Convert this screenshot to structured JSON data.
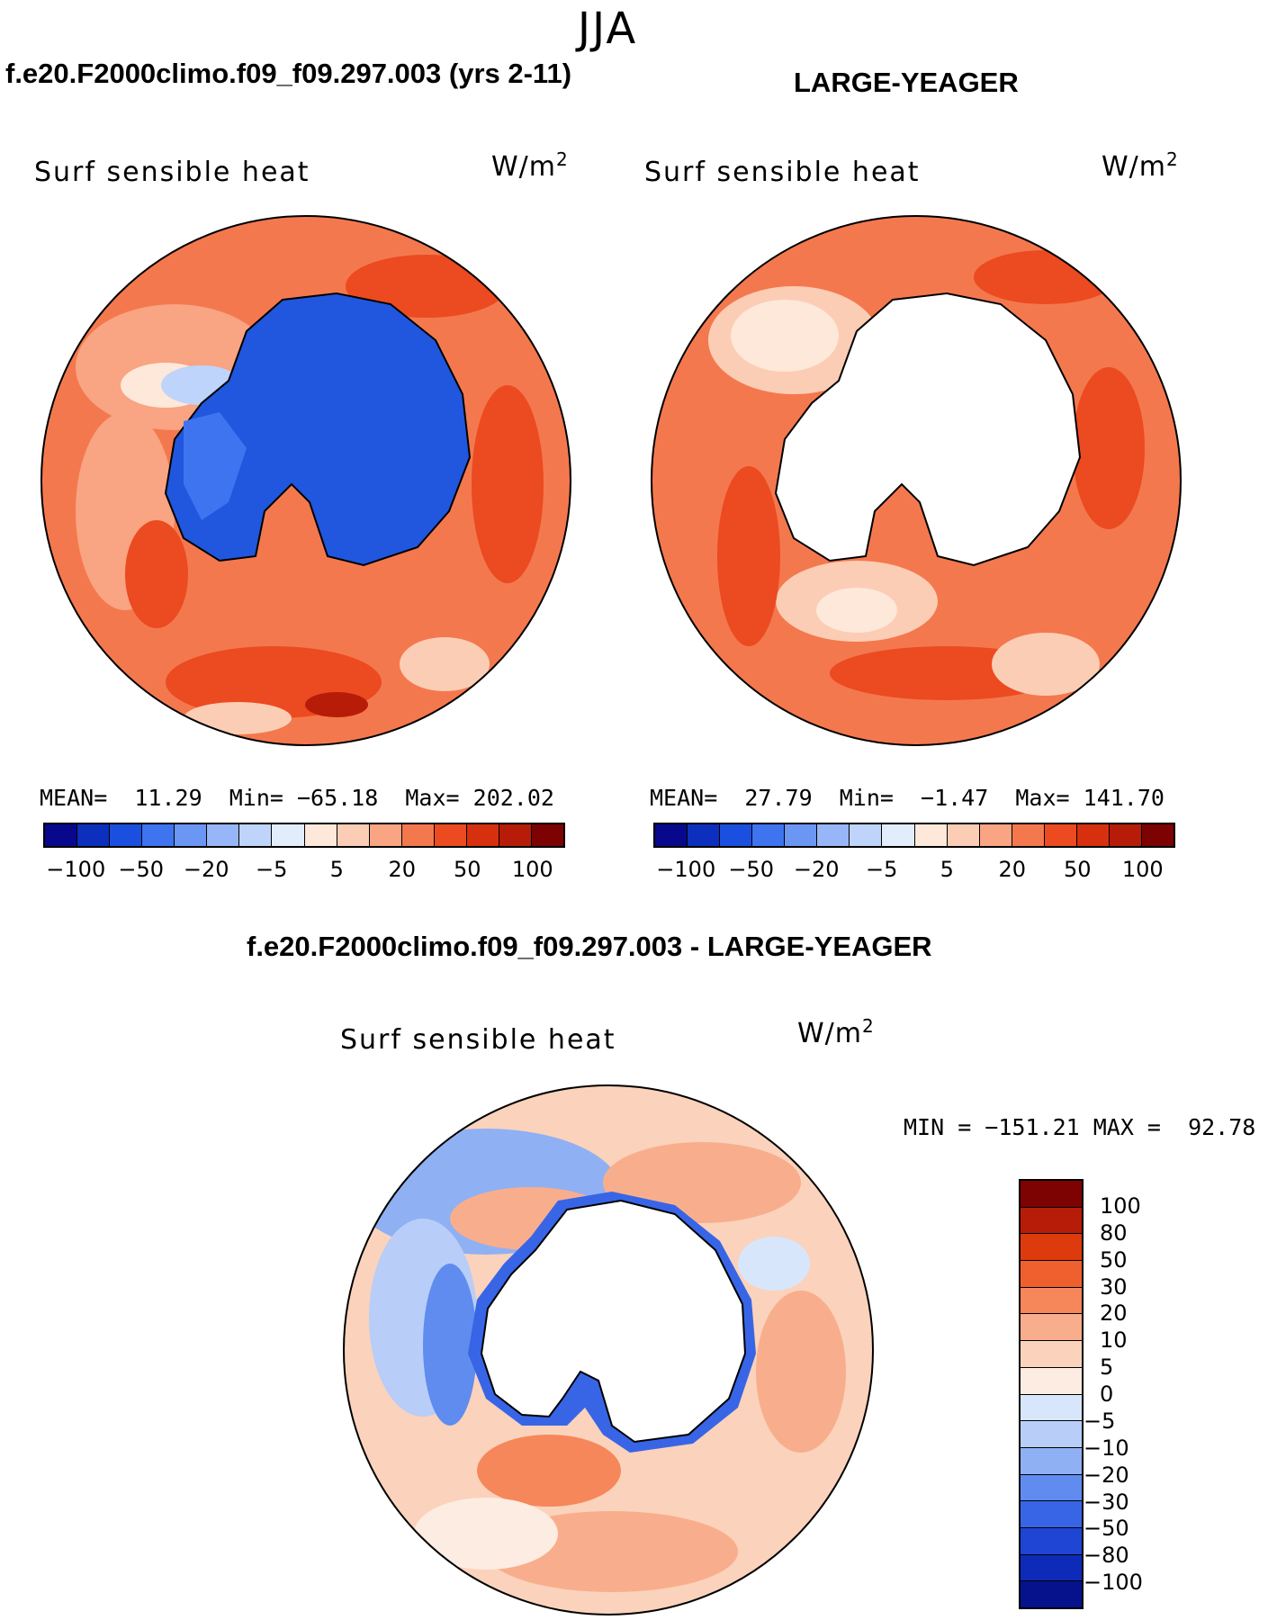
{
  "season": "JJA",
  "panel_left": {
    "case_title": "f.e20.F2000climo.f09_f09.297.003 (yrs 2-11)",
    "field_label": "Surf sensible heat",
    "units": "W/m",
    "units_exp": "2",
    "stats": "MEAN=  11.29  Min= −65.18  Max= 202.02",
    "colorbar_ticks": [
      "−100",
      "−50",
      "−20",
      "−5",
      "5",
      "20",
      "50",
      "100"
    ]
  },
  "panel_right": {
    "case_title": "LARGE-YEAGER",
    "field_label": "Surf sensible heat",
    "units": "W/m",
    "units_exp": "2",
    "stats": "MEAN=  27.79  Min=  −1.47  Max= 141.70",
    "colorbar_ticks": [
      "−100",
      "−50",
      "−20",
      "−5",
      "5",
      "20",
      "50",
      "100"
    ]
  },
  "panel_diff": {
    "diff_title": "f.e20.F2000climo.f09_f09.297.003 - LARGE-YEAGER",
    "field_label": "Surf sensible heat",
    "units": "W/m",
    "units_exp": "2",
    "minmax": "MIN = −151.21 MAX =  92.78",
    "colorbar_ticks": [
      "100",
      "80",
      "50",
      "30",
      "20",
      "10",
      "5",
      "0",
      "−5",
      "−10",
      "−20",
      "−30",
      "−50",
      "−80",
      "−100"
    ]
  },
  "colors": {
    "abs_scale": [
      "#08088c",
      "#0c2fbe",
      "#1a4fe0",
      "#3f74f0",
      "#6c96f4",
      "#97b6f7",
      "#bed4fa",
      "#e2edfc",
      "#fde8da",
      "#fccdb5",
      "#f9a482",
      "#f4784e",
      "#ec4a20",
      "#d7300f",
      "#b71c08",
      "#7d0202"
    ],
    "diff_scale": [
      "#7d0202",
      "#b71c08",
      "#dd3a0e",
      "#f0602e",
      "#f5875a",
      "#f8ae8c",
      "#fbd2bb",
      "#fdece2",
      "#d8e6fb",
      "#b8cdf8",
      "#8fb0f3",
      "#5f8cee",
      "#3865e6",
      "#1f45d4",
      "#0d2ab8",
      "#06128c"
    ],
    "antarctica_ocean_left": "#2156de",
    "land_none": "#ffffff"
  }
}
